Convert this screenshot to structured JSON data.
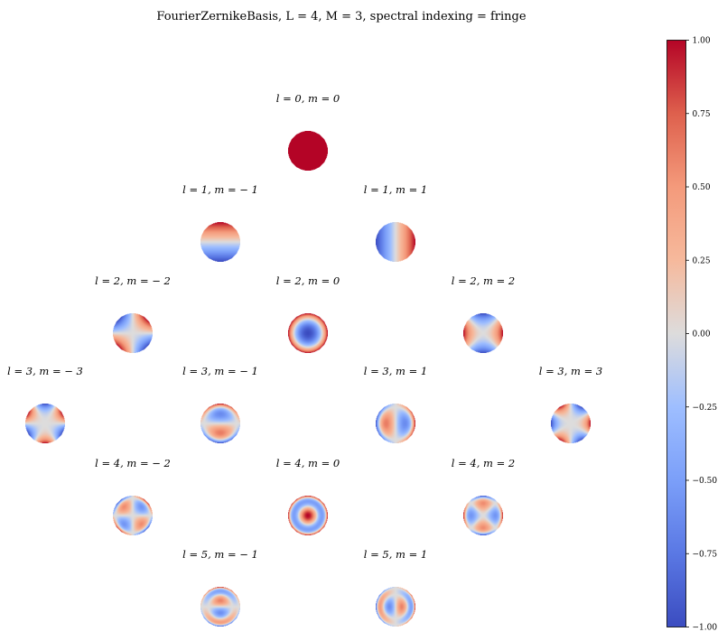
{
  "figure": {
    "title": "FourierZernikeBasis, L = 4, M = 3, spectral indexing = fringe"
  },
  "chart_data": {
    "type": "heatmap",
    "description_kind": "grid of Zernike mode disks",
    "title": "FourierZernikeBasis, L = 4, M = 3, spectral indexing = fringe",
    "colormap": "coolwarm",
    "vmin": -1.0,
    "vmax": 1.0,
    "colorbar": {
      "ticks": [
        1.0,
        0.75,
        0.5,
        0.25,
        0.0,
        -0.25,
        -0.5,
        -0.75,
        -1.0
      ],
      "tick_labels": [
        "1.00",
        "0.75",
        "0.50",
        "0.25",
        "0.00",
        "−0.25",
        "−0.50",
        "−0.75",
        "−1.00"
      ]
    },
    "modes": [
      {
        "l": 0,
        "m": 0,
        "label": "l = 0, m = 0"
      },
      {
        "l": 1,
        "m": -1,
        "label": "l = 1, m = − 1"
      },
      {
        "l": 1,
        "m": 1,
        "label": "l = 1, m = 1"
      },
      {
        "l": 2,
        "m": -2,
        "label": "l = 2, m = − 2"
      },
      {
        "l": 2,
        "m": 0,
        "label": "l = 2, m = 0"
      },
      {
        "l": 2,
        "m": 2,
        "label": "l = 2, m = 2"
      },
      {
        "l": 3,
        "m": -3,
        "label": "l = 3, m = − 3"
      },
      {
        "l": 3,
        "m": -1,
        "label": "l = 3, m = − 1"
      },
      {
        "l": 3,
        "m": 1,
        "label": "l = 3, m = 1"
      },
      {
        "l": 3,
        "m": 3,
        "label": "l = 3, m = 3"
      },
      {
        "l": 4,
        "m": -2,
        "label": "l = 4, m = − 2"
      },
      {
        "l": 4,
        "m": 0,
        "label": "l = 4, m = 0"
      },
      {
        "l": 4,
        "m": 2,
        "label": "l = 4, m = 2"
      },
      {
        "l": 5,
        "m": -1,
        "label": "l = 5, m = − 1"
      },
      {
        "l": 5,
        "m": 1,
        "label": "l = 5, m = 1"
      }
    ]
  }
}
